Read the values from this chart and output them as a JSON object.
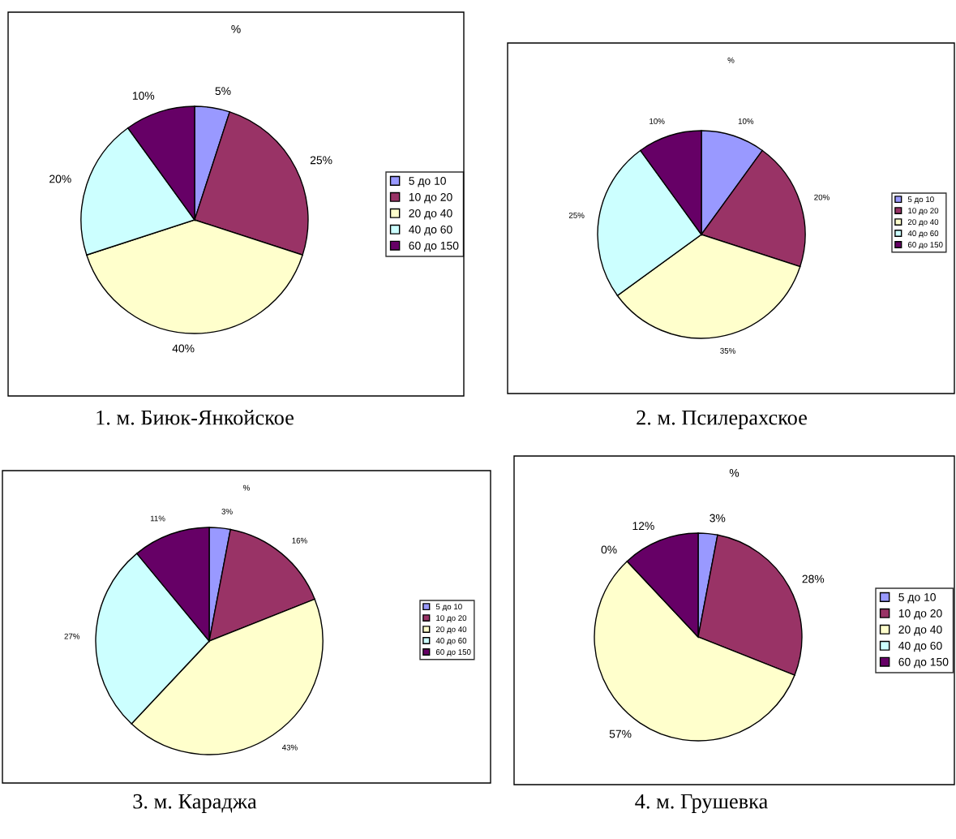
{
  "chart_data": [
    {
      "type": "pie",
      "title": "%",
      "categories": [
        "5 до 10",
        "10 до 20",
        "20 до 40",
        "40 до 60",
        "60 до 150"
      ],
      "values": [
        5,
        25,
        40,
        20,
        10
      ],
      "colors": [
        "#9999ff",
        "#993366",
        "#ffffcc",
        "#ccffff",
        "#660066"
      ],
      "value_labels": [
        "5%",
        "25%",
        "40%",
        "20%",
        "10%"
      ],
      "legend": "right",
      "annotations": [
        "1. м. Биюк-Янкойское"
      ]
    },
    {
      "type": "pie",
      "title": "%",
      "categories": [
        "5 до 10",
        "10 до 20",
        "20 до 40",
        "40 до 60",
        "60 до 150"
      ],
      "values": [
        10,
        20,
        35,
        25,
        10
      ],
      "colors": [
        "#9999ff",
        "#993366",
        "#ffffcc",
        "#ccffff",
        "#660066"
      ],
      "value_labels": [
        "10%",
        "20%",
        "35%",
        "25%",
        "10%"
      ],
      "legend": "right",
      "annotations": [
        "2. м. Псилерахское"
      ]
    },
    {
      "type": "pie",
      "title": "%",
      "categories": [
        "5 до 10",
        "10 до 20",
        "20 до 40",
        "40 до 60",
        "60 до 150"
      ],
      "values": [
        3,
        16,
        43,
        27,
        11
      ],
      "colors": [
        "#9999ff",
        "#993366",
        "#ffffcc",
        "#ccffff",
        "#660066"
      ],
      "value_labels": [
        "3%",
        "16%",
        "43%",
        "27%",
        "11%"
      ],
      "legend": "right",
      "annotations": [
        "3. м. Караджа"
      ]
    },
    {
      "type": "pie",
      "title": "%",
      "categories": [
        "5 до 10",
        "10 до 20",
        "20 до 40",
        "40 до 60",
        "60 до 150"
      ],
      "values": [
        3,
        28,
        57,
        0,
        12
      ],
      "colors": [
        "#9999ff",
        "#993366",
        "#ffffcc",
        "#ccffff",
        "#660066"
      ],
      "value_labels": [
        "3%",
        "28%",
        "57%",
        "0%",
        "12%"
      ],
      "legend": "right",
      "annotations": [
        "4. м. Грушевка"
      ]
    }
  ]
}
